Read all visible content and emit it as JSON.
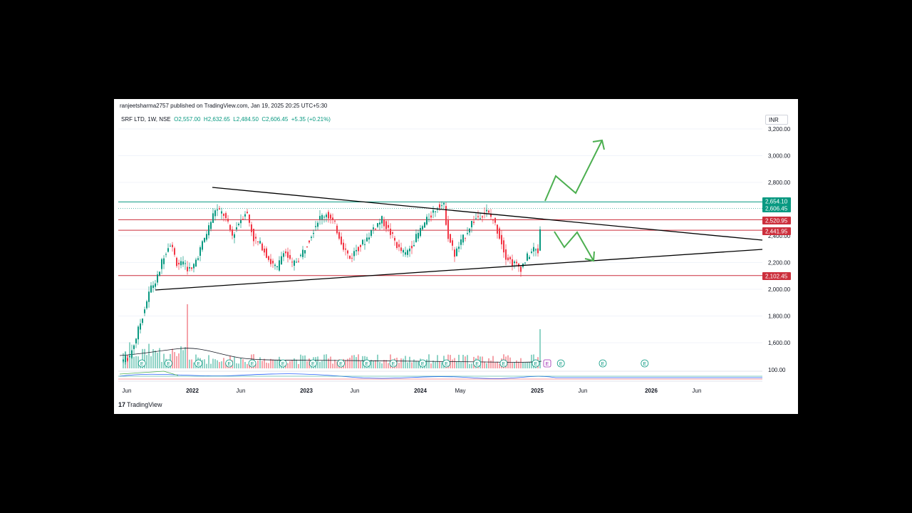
{
  "header": {
    "published": "ranjeetsharma2757 published on TradingView.com, Jan 19, 2025 20:25 UTC+5:30",
    "symbol": "SRF LTD, 1W, NSE",
    "open": "O2,557.00",
    "high": "H2,632.65",
    "low": "L2,484.50",
    "close": "C2,606.45",
    "change": "+5.35 (+0.21%)",
    "currency": "INR"
  },
  "footer": {
    "logo_mark": "17",
    "logo_text": "TradingView"
  },
  "colors": {
    "up": "#089981",
    "down": "#f23645",
    "level_green": "#089981",
    "level_red": "#cc2f3c",
    "projection": "#4caf50",
    "trendline": "#000000"
  },
  "chart_data": {
    "type": "candlestick",
    "y_axis": {
      "min": 1400,
      "max": 3300,
      "ticks": [
        "3,200.00",
        "3,000.00",
        "2,800.00",
        "2,400.00",
        "2,200.00",
        "2,000.00",
        "1,800.00",
        "1,600.00"
      ],
      "tick_values": [
        3200,
        3000,
        2800,
        2400,
        2200,
        2000,
        1800,
        1600
      ]
    },
    "x_axis": {
      "ticks": [
        "Jun",
        "2022",
        "Jun",
        "2023",
        "Jun",
        "2024",
        "May",
        "2025",
        "Jun",
        "2026",
        "Jun"
      ],
      "bold": [
        "2022",
        "2023",
        "2024",
        "2025",
        "2026"
      ]
    },
    "price_labels": [
      {
        "text": "2,654.10",
        "value": 2654.1,
        "color": "#089981"
      },
      {
        "text": "2,606.45",
        "value": 2606.45,
        "color": "#089981"
      },
      {
        "text": "2,520.95",
        "value": 2520.95,
        "color": "#cc2f3c"
      },
      {
        "text": "2,441.95",
        "value": 2441.95,
        "color": "#cc2f3c"
      },
      {
        "text": "2,102.45",
        "value": 2102.45,
        "color": "#cc2f3c"
      }
    ],
    "horizontal_levels": [
      {
        "value": 2654.1,
        "color": "#089981"
      },
      {
        "value": 2520.95,
        "color": "#cc2f3c"
      },
      {
        "value": 2441.95,
        "color": "#cc2f3c"
      },
      {
        "value": 2102.45,
        "color": "#cc2f3c"
      }
    ],
    "last_price": 2606.45,
    "indicator_label": "100.00",
    "earnings_markers": {
      "label": "E",
      "count": 18,
      "upcoming_label": "E"
    }
  }
}
